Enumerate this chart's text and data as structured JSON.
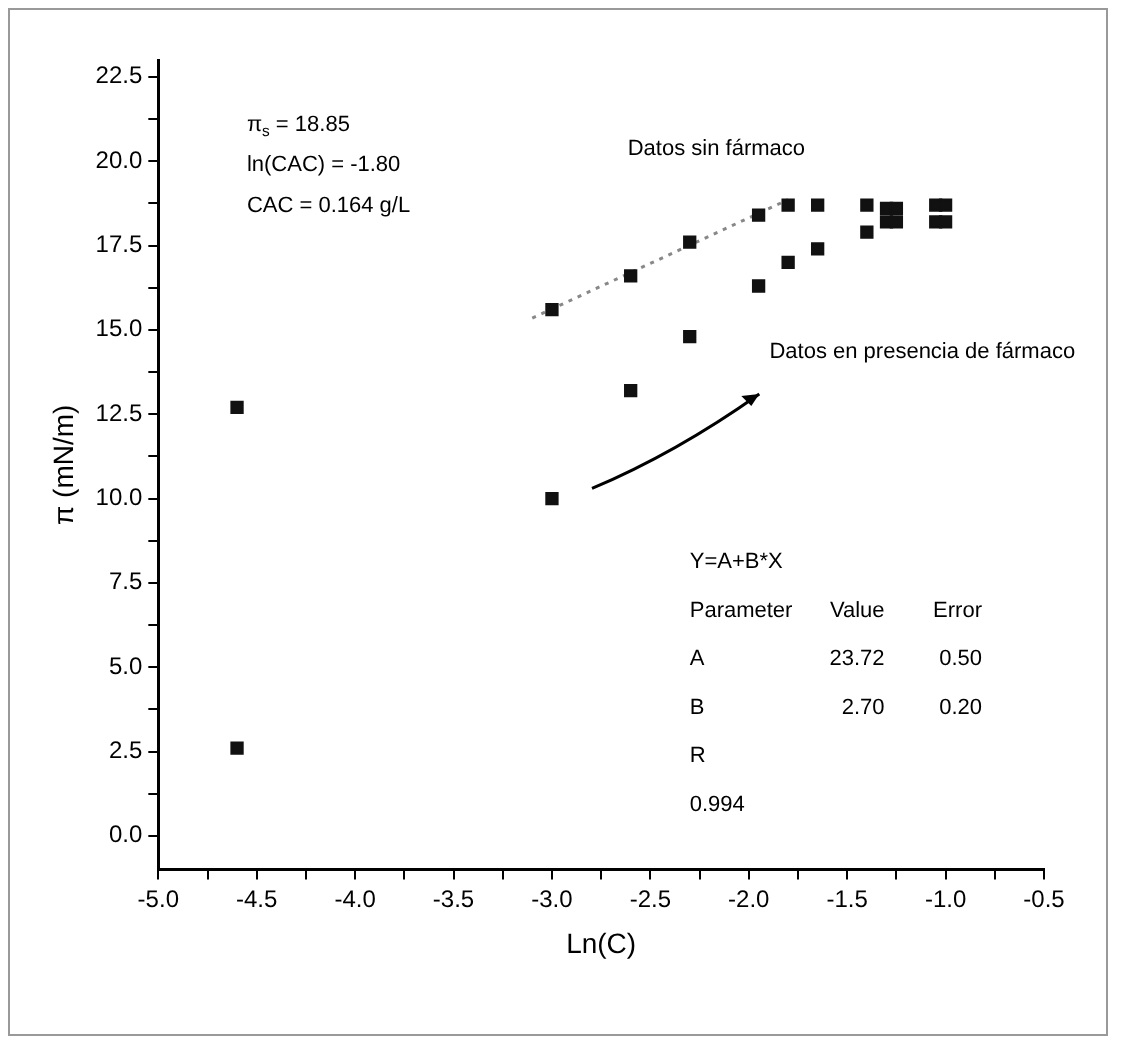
{
  "chart_data": {
    "type": "scatter",
    "xlabel": "Ln(C)",
    "ylabel": "π (mN/m)",
    "xlim": [
      -5,
      -0.5
    ],
    "ylim": [
      -1,
      23
    ],
    "xticks": [
      {
        "value": -5,
        "label": "-5.0"
      },
      {
        "value": -4.75,
        "label": null
      },
      {
        "value": -4.5,
        "label": "-4.5"
      },
      {
        "value": -4.25,
        "label": null
      },
      {
        "value": -4,
        "label": "-4.0"
      },
      {
        "value": -3.75,
        "label": null
      },
      {
        "value": -3.5,
        "label": "-3.5"
      },
      {
        "value": -3.25,
        "label": null
      },
      {
        "value": -3,
        "label": "-3.0"
      },
      {
        "value": -2.75,
        "label": null
      },
      {
        "value": -2.5,
        "label": "-2.5"
      },
      {
        "value": -2.25,
        "label": null
      },
      {
        "value": -2,
        "label": "-2.0"
      },
      {
        "value": -1.75,
        "label": null
      },
      {
        "value": -1.5,
        "label": "-1.5"
      },
      {
        "value": -1.25,
        "label": null
      },
      {
        "value": -1,
        "label": "-1.0"
      },
      {
        "value": -0.75,
        "label": null
      },
      {
        "value": -0.5,
        "label": "-0.5"
      }
    ],
    "yticks": [
      {
        "value": 0,
        "label": "0.0"
      },
      {
        "value": 1.25,
        "label": null
      },
      {
        "value": 2.5,
        "label": "2.5"
      },
      {
        "value": 3.75,
        "label": null
      },
      {
        "value": 5,
        "label": "5.0"
      },
      {
        "value": 6.25,
        "label": null
      },
      {
        "value": 7.5,
        "label": "7.5"
      },
      {
        "value": 8.75,
        "label": null
      },
      {
        "value": 10,
        "label": "10.0"
      },
      {
        "value": 11.25,
        "label": null
      },
      {
        "value": 12.5,
        "label": "12.5"
      },
      {
        "value": 13.75,
        "label": null
      },
      {
        "value": 15,
        "label": "15.0"
      },
      {
        "value": 16.25,
        "label": null
      },
      {
        "value": 17.5,
        "label": "17.5"
      },
      {
        "value": 18.75,
        "label": null
      },
      {
        "value": 20,
        "label": "20.0"
      },
      {
        "value": 21.25,
        "label": null
      },
      {
        "value": 22.5,
        "label": "22.5"
      }
    ],
    "grid": false,
    "legend": false,
    "marker": "square",
    "series": [
      {
        "color": "#111111",
        "x": [
          -3.0,
          -2.6,
          -2.3,
          -1.95,
          -1.8,
          -1.65,
          -1.4,
          -1.3,
          -1.25,
          -1.05,
          -1.0,
          -1.3,
          -1.25,
          -1.05,
          -1.0
        ],
        "values": [
          15.6,
          16.6,
          17.6,
          18.4,
          18.7,
          18.7,
          18.7,
          18.6,
          18.6,
          18.7,
          18.7,
          18.2,
          18.2,
          18.2,
          18.2
        ]
      },
      {
        "color": "#111111",
        "x": [
          -4.6,
          -4.6,
          -3.0,
          -2.6,
          -2.3,
          -1.95,
          -1.8,
          -1.65,
          -1.4
        ],
        "values": [
          12.7,
          2.6,
          10.0,
          13.2,
          14.8,
          16.3,
          17.0,
          17.4,
          17.9
        ]
      },
      {
        "type": "line",
        "color": "#888888",
        "marker": "none",
        "line_style": "dotted",
        "x": [
          -3.1,
          -1.8
        ],
        "values": [
          15.35,
          18.86
        ]
      }
    ],
    "annotations": [
      "π$_{s}$ = 18.85",
      "ln(CAC) = -1.80",
      "CAC = 0.164 g/L",
      "Datos sin fármaco",
      "Datos en presencia de fármaco",
      "Y=A+B*X",
      "Parameter",
      "Value",
      "Error",
      "A",
      "23.72",
      "0.50",
      "B",
      "2.70",
      "0.20",
      "R",
      "0.994"
    ]
  }
}
